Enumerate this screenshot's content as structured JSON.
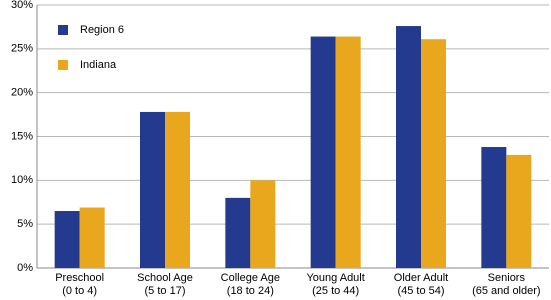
{
  "chart_data": {
    "type": "bar",
    "categories": [
      "Preschool\n(0 to 4)",
      "School Age\n(5 to 17)",
      "College Age\n(18 to 24)",
      "Young Adult\n(25 to 44)",
      "Older Adult\n(45 to 54)",
      "Seniors\n(65 and older)"
    ],
    "series": [
      {
        "name": "Region 6",
        "color": "#233a8f",
        "values": [
          6.5,
          17.8,
          8.0,
          26.4,
          27.6,
          13.8
        ]
      },
      {
        "name": "Indiana",
        "color": "#e8a71c",
        "values": [
          6.9,
          17.8,
          10.0,
          26.4,
          26.1,
          12.9
        ]
      }
    ],
    "ylim": [
      0,
      30
    ],
    "yticks": [
      {
        "value": 0,
        "label": "0%"
      },
      {
        "value": 5,
        "label": "5%"
      },
      {
        "value": 10,
        "label": "10%"
      },
      {
        "value": 15,
        "label": "15%"
      },
      {
        "value": 20,
        "label": "20%"
      },
      {
        "value": 25,
        "label": "25%"
      },
      {
        "value": 30,
        "label": "30%"
      }
    ],
    "grid": true,
    "legend": "top-left"
  }
}
